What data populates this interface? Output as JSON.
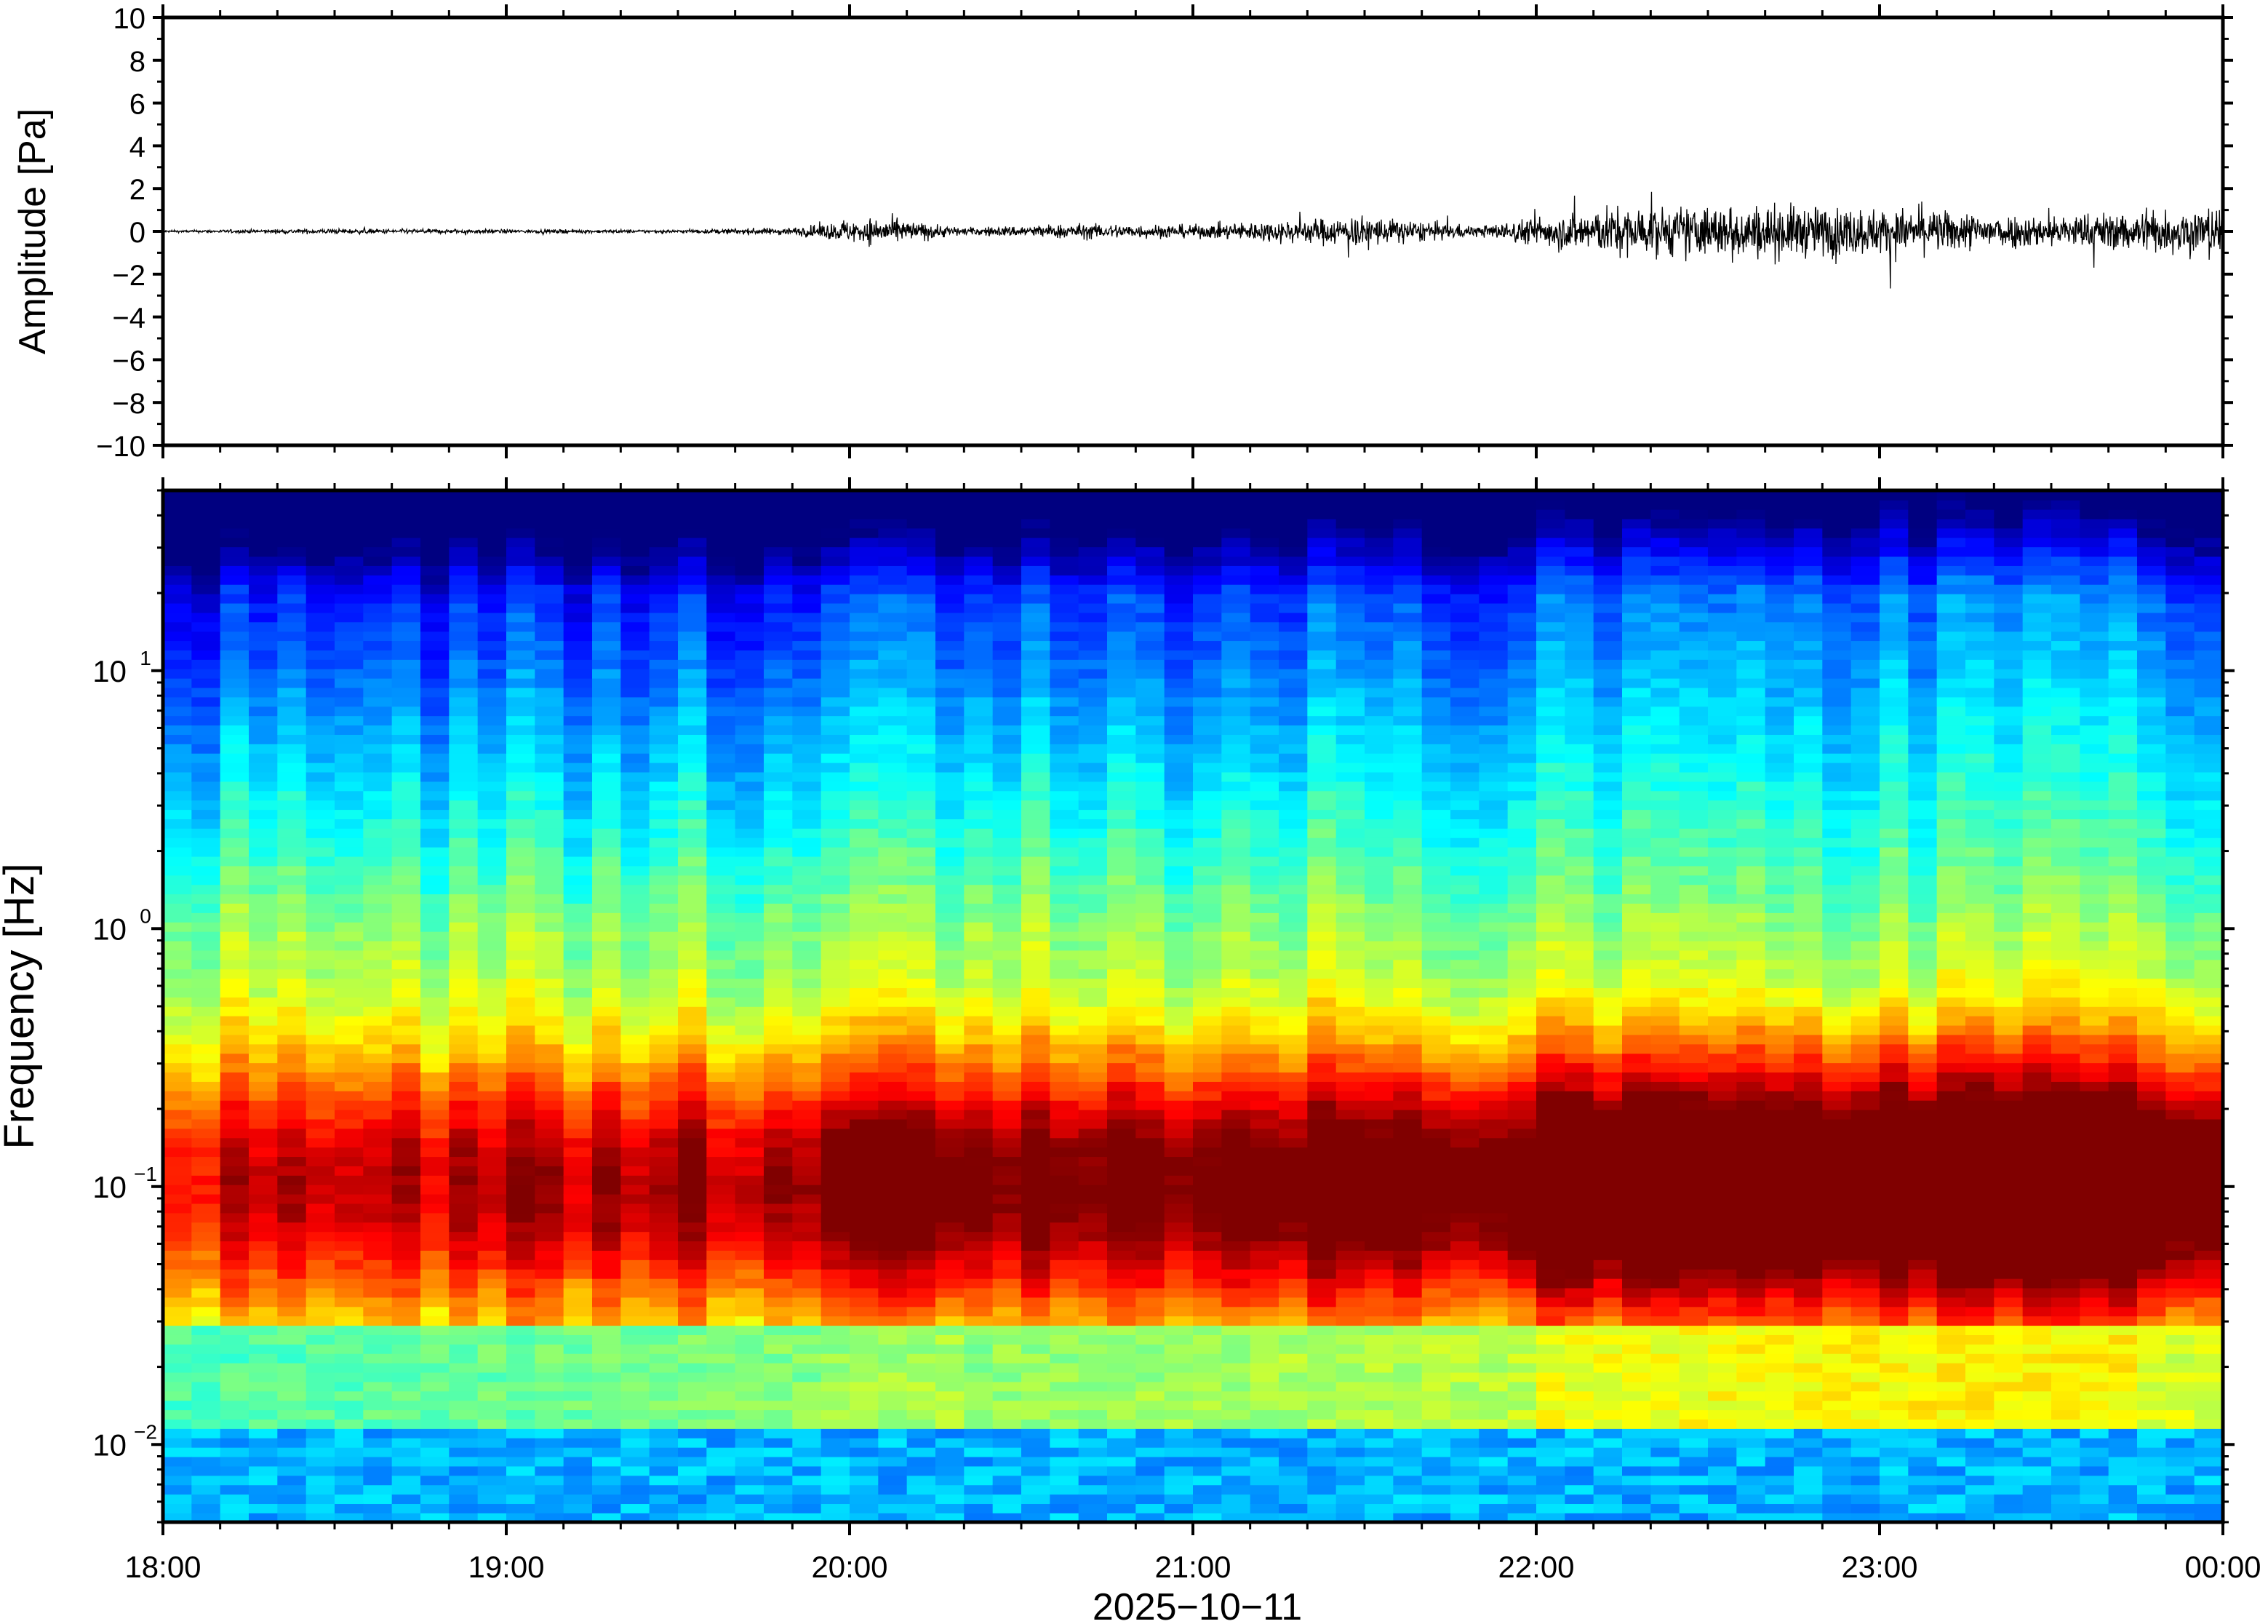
{
  "chart_data": [
    {
      "type": "line",
      "ylabel": "Amplitude [Pa]",
      "ylim": [
        -10,
        10
      ],
      "yticks": [
        10,
        8,
        6,
        4,
        2,
        0,
        -2,
        -4,
        -6,
        -8,
        -10
      ],
      "ytick_labels": [
        "10",
        "8",
        "6",
        "4",
        "2",
        "0",
        "−2",
        "−4",
        "−6",
        "−8",
        "−10"
      ],
      "xlim": [
        "18:00",
        "00:00"
      ],
      "grid": false,
      "series": [
        {
          "values_envelope": [
            {
              "t": "18:00",
              "a": 0.08
            },
            {
              "t": "18:30",
              "a": 0.2
            },
            {
              "t": "19:00",
              "a": 0.15
            },
            {
              "t": "19:30",
              "a": 0.12
            },
            {
              "t": "19:50",
              "a": 0.3
            },
            {
              "t": "20:05",
              "a": 1.1
            },
            {
              "t": "20:20",
              "a": 0.3
            },
            {
              "t": "20:40",
              "a": 0.6
            },
            {
              "t": "21:00",
              "a": 0.5
            },
            {
              "t": "21:30",
              "a": 1.2
            },
            {
              "t": "21:50",
              "a": 0.4
            },
            {
              "t": "22:10",
              "a": 1.8
            },
            {
              "t": "22:40",
              "a": 2.1
            },
            {
              "t": "23:00",
              "a": 1.8
            },
            {
              "t": "23:30",
              "a": 1.2
            },
            {
              "t": "00:00",
              "a": 2.0
            }
          ]
        }
      ]
    },
    {
      "type": "heatmap",
      "ylabel": "Frequency [Hz]",
      "xlabel": "2025−10−11",
      "yscale": "log",
      "ylim": [
        0.005,
        50
      ],
      "yticks": [
        0.01,
        0.1,
        1,
        10
      ],
      "ytick_labels": [
        {
          "base": "10",
          "exp": "−2"
        },
        {
          "base": "10",
          "exp": "−1"
        },
        {
          "base": "10",
          "exp": "0"
        },
        {
          "base": "10",
          "exp": "1"
        }
      ],
      "xticks": [
        "18:00",
        "19:00",
        "20:00",
        "21:00",
        "22:00",
        "23:00",
        "00:00"
      ],
      "colormap": "jet",
      "grid": false
    }
  ]
}
